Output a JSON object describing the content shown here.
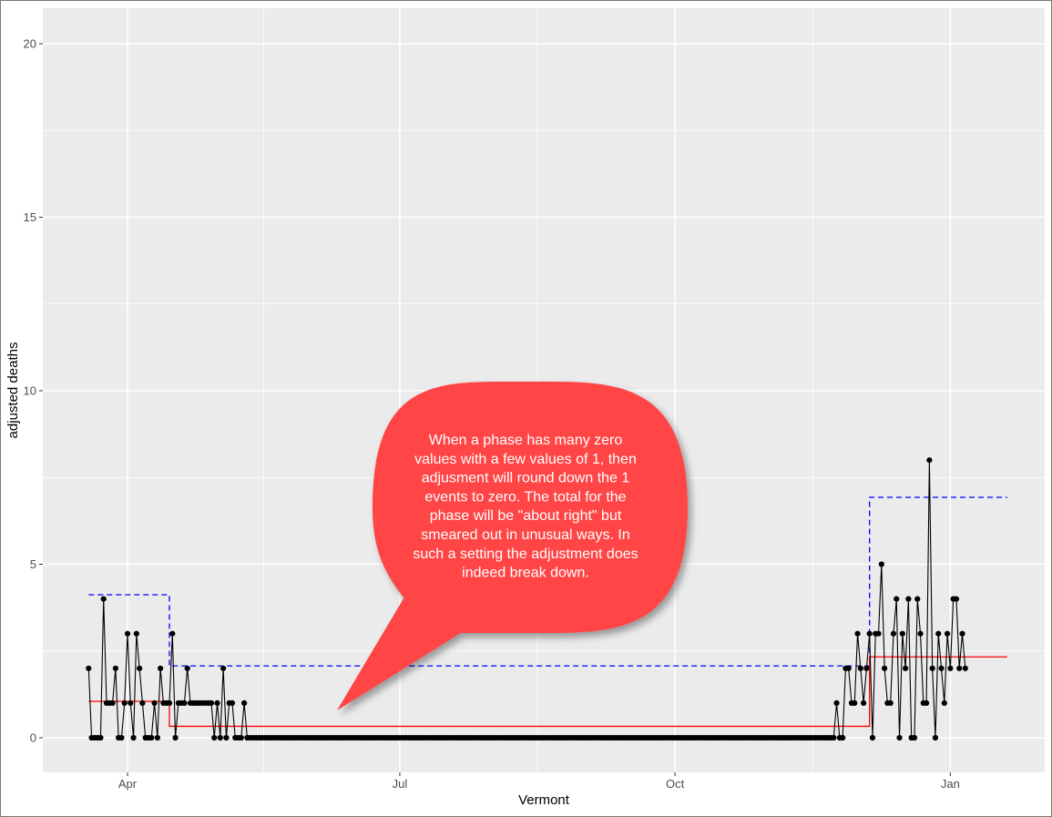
{
  "chart_data": {
    "type": "line",
    "title": "",
    "xlabel": "Vermont",
    "ylabel": "adjusted deaths",
    "x_ticks": [
      {
        "label": "Apr",
        "day": 0
      },
      {
        "label": "Jul",
        "day": 91
      },
      {
        "label": "Oct",
        "day": 183
      },
      {
        "label": "Jan",
        "day": 275
      }
    ],
    "y_ticks": [
      0,
      5,
      10,
      15,
      20
    ],
    "xlim_days": [
      -28,
      323
    ],
    "ylim": [
      -1,
      21
    ],
    "start_day": -13,
    "grid": true,
    "colors": {
      "panel": "#ebebeb",
      "grid": "#ffffff",
      "observed": "#000000",
      "fitted": "#ff0000",
      "upper": "#0000ff",
      "callout": "#ff4444"
    },
    "series": [
      {
        "name": "adjusted deaths",
        "style": "points-and-lines",
        "values": [
          2,
          0,
          0,
          0,
          0,
          4,
          1,
          1,
          1,
          2,
          0,
          0,
          1,
          3,
          1,
          0,
          3,
          2,
          1,
          0,
          0,
          0,
          1,
          0,
          2,
          1,
          1,
          1,
          3,
          0,
          1,
          1,
          1,
          2,
          1,
          1,
          1,
          1,
          1,
          1,
          1,
          1,
          0,
          1,
          0,
          2,
          0,
          1,
          1,
          0,
          0,
          0,
          1,
          0,
          0,
          0,
          0,
          0,
          0,
          0,
          0,
          0,
          0,
          0,
          0,
          0,
          0,
          0,
          0,
          0,
          0,
          0,
          0,
          0,
          0,
          0,
          0,
          0,
          0,
          0,
          0,
          0,
          0,
          0,
          0,
          0,
          0,
          0,
          0,
          0,
          0,
          0,
          0,
          0,
          0,
          0,
          0,
          0,
          0,
          0,
          0,
          0,
          0,
          0,
          0,
          0,
          0,
          0,
          0,
          0,
          0,
          0,
          0,
          0,
          0,
          0,
          0,
          0,
          0,
          0,
          0,
          0,
          0,
          0,
          0,
          0,
          0,
          0,
          0,
          0,
          0,
          0,
          0,
          0,
          0,
          0,
          0,
          0,
          0,
          0,
          0,
          0,
          0,
          0,
          0,
          0,
          0,
          0,
          0,
          0,
          0,
          0,
          0,
          0,
          0,
          0,
          0,
          0,
          0,
          0,
          0,
          0,
          0,
          0,
          0,
          0,
          0,
          0,
          0,
          0,
          0,
          0,
          0,
          0,
          0,
          0,
          0,
          0,
          0,
          0,
          0,
          0,
          0,
          0,
          0,
          0,
          0,
          0,
          0,
          0,
          0,
          0,
          0,
          0,
          0,
          0,
          0,
          0,
          0,
          0,
          0,
          0,
          0,
          0,
          0,
          0,
          0,
          0,
          0,
          0,
          0,
          0,
          0,
          0,
          0,
          0,
          0,
          0,
          0,
          0,
          0,
          0,
          0,
          0,
          0,
          0,
          0,
          0,
          0,
          0,
          0,
          0,
          0,
          0,
          0,
          0,
          0,
          0,
          0,
          0,
          0,
          0,
          0,
          0,
          0,
          0,
          0,
          0,
          0,
          0,
          1,
          0,
          0,
          2,
          2,
          1,
          1,
          3,
          2,
          1,
          2,
          3,
          0,
          3,
          3,
          5,
          2,
          1,
          1,
          3,
          4,
          0,
          3,
          2,
          4,
          0,
          0,
          4,
          3,
          1,
          1,
          8,
          2,
          0,
          3,
          2,
          1,
          3,
          2,
          4,
          4,
          2,
          3,
          2
        ]
      },
      {
        "name": "phase mean",
        "style": "solid",
        "segments": [
          {
            "x0": -13,
            "x1": 14,
            "y": 1.05
          },
          {
            "x0": 14,
            "x1": 248,
            "y": 0.33
          },
          {
            "x0": 248,
            "x1": 294,
            "y": 2.33
          }
        ]
      },
      {
        "name": "upper bound",
        "style": "dashed",
        "segments": [
          {
            "x0": -13,
            "x1": 14,
            "y": 4.12
          },
          {
            "x0": 14,
            "x1": 248,
            "y": 2.07
          },
          {
            "x0": 248,
            "x1": 294,
            "y": 6.93
          }
        ]
      }
    ],
    "annotation": {
      "lines": [
        "When a phase has many zero",
        "values with a few values of 1, then",
        "adjusment will round down the 1",
        "events to zero.   The total for the",
        "phase will be \"about right\" but",
        "smeared out in unusual ways.   In",
        "such a setting the adjustment does",
        "indeed break down."
      ]
    }
  }
}
